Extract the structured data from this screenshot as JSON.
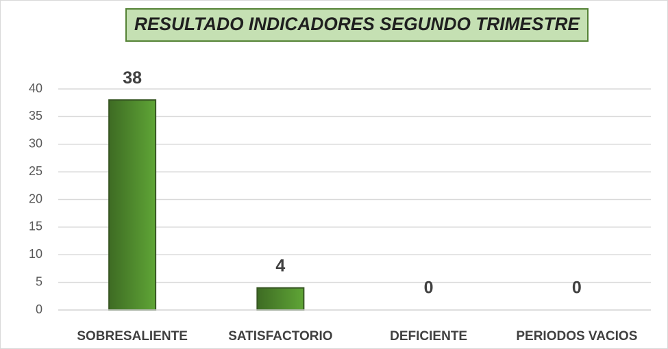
{
  "chart_data": {
    "type": "bar",
    "title": "RESULTADO INDICADORES SEGUNDO TRIMESTRE",
    "categories": [
      "SOBRESALIENTE",
      "SATISFACTORIO",
      "DEFICIENTE",
      "PERIODOS VACIOS"
    ],
    "values": [
      38,
      4,
      0,
      0
    ],
    "color": "#5fa536",
    "ylim": [
      0,
      40
    ],
    "yticks": [
      0,
      5,
      10,
      15,
      20,
      25,
      30,
      35,
      40
    ],
    "grid": true
  }
}
